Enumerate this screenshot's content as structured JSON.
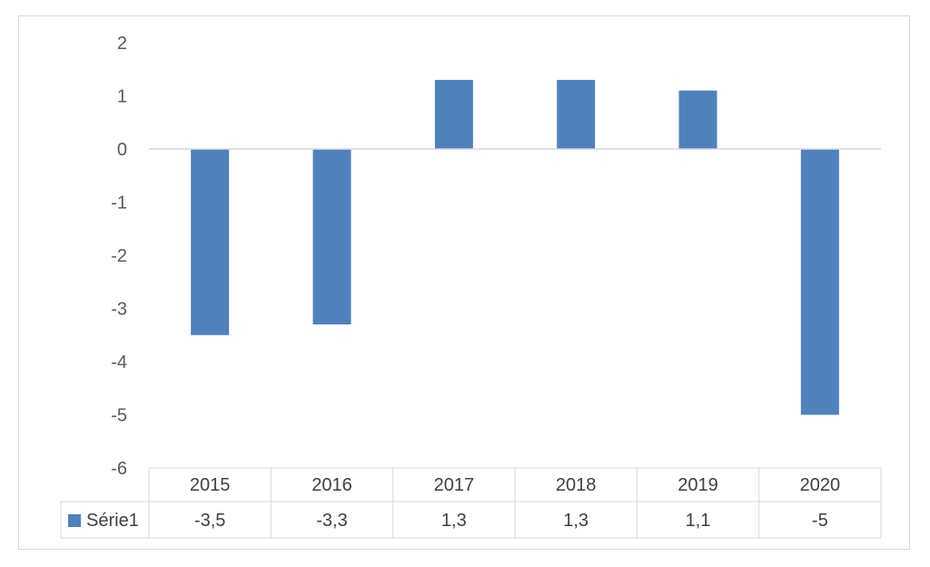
{
  "chart_data": {
    "type": "bar",
    "categories": [
      "2015",
      "2016",
      "2017",
      "2018",
      "2019",
      "2020"
    ],
    "series": [
      {
        "name": "Série1",
        "values": [
          -3.5,
          -3.3,
          1.3,
          1.3,
          1.1,
          -5
        ],
        "color": "#4f81bd"
      }
    ],
    "value_labels": [
      "-3,5",
      "-3,3",
      "1,3",
      "1,3",
      "1,1",
      "-5"
    ],
    "ylim": [
      -6,
      2
    ],
    "yticks": [
      2,
      1,
      0,
      -1,
      -2,
      -3,
      -4,
      -5,
      -6
    ],
    "grid": false,
    "legend": "data-table",
    "data_table": true,
    "title": "",
    "xlabel": "",
    "ylabel": ""
  }
}
